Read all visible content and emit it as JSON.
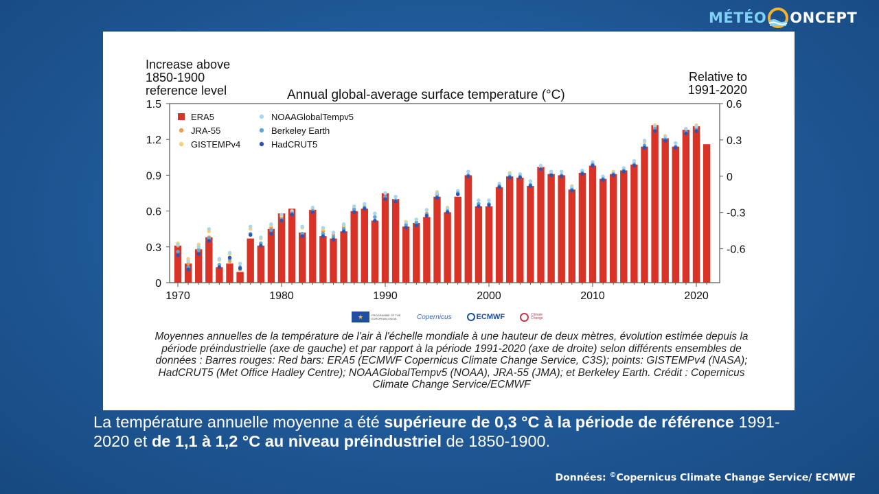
{
  "brand": {
    "part1": "MÉTÉO",
    "part2": "ONCEPT"
  },
  "chart_data": {
    "type": "bar",
    "title": "Annual global-average surface temperature (°C)",
    "ylabel": "Increase above 1850-1900 reference level",
    "ylabel_right": "Relative to 1991-2020",
    "ylim": [
      0,
      1.5
    ],
    "ylim_right": [
      -0.88,
      0.6
    ],
    "yticks": [
      "0",
      "0.3",
      "0.6",
      "0.9",
      "1.2",
      "1.5"
    ],
    "yticks_right": [
      "-0.6",
      "-0.3",
      "0",
      "0.3",
      "0.6"
    ],
    "xticks": [
      "1970",
      "1980",
      "1990",
      "2000",
      "2010",
      "2020"
    ],
    "legend_position": "top-left",
    "x": [
      1970,
      1971,
      1972,
      1973,
      1974,
      1975,
      1976,
      1977,
      1978,
      1979,
      1980,
      1981,
      1982,
      1983,
      1984,
      1985,
      1986,
      1987,
      1988,
      1989,
      1990,
      1991,
      1992,
      1993,
      1994,
      1995,
      1996,
      1997,
      1998,
      1999,
      2000,
      2001,
      2002,
      2003,
      2004,
      2005,
      2006,
      2007,
      2008,
      2009,
      2010,
      2011,
      2012,
      2013,
      2014,
      2015,
      2016,
      2017,
      2018,
      2019,
      2020,
      2021
    ],
    "series": [
      {
        "name": "ERA5",
        "kind": "bar",
        "color": "#d93226",
        "values": [
          0.31,
          0.16,
          0.28,
          0.38,
          0.13,
          0.16,
          0.09,
          0.37,
          0.31,
          0.45,
          0.58,
          0.62,
          0.42,
          0.61,
          0.39,
          0.37,
          0.43,
          0.6,
          0.62,
          0.52,
          0.75,
          0.7,
          0.47,
          0.5,
          0.55,
          0.72,
          0.59,
          0.72,
          0.9,
          0.64,
          0.64,
          0.8,
          0.89,
          0.88,
          0.81,
          0.97,
          0.91,
          0.9,
          0.78,
          0.92,
          0.98,
          0.87,
          0.91,
          0.94,
          0.99,
          1.14,
          1.32,
          1.21,
          1.14,
          1.28,
          1.31,
          1.16
        ]
      },
      {
        "name": "JRA-55",
        "kind": "point",
        "color": "#f2994a",
        "values": [
          0.31,
          0.16,
          0.28,
          0.38,
          0.15,
          0.18,
          0.11,
          0.4,
          0.33,
          0.46,
          0.55,
          0.59,
          0.41,
          0.61,
          0.43,
          0.4,
          0.47,
          0.62,
          0.65,
          0.55,
          0.72,
          0.69,
          0.49,
          0.51,
          0.58,
          0.74,
          0.6,
          0.75,
          0.9,
          0.66,
          0.66,
          0.8,
          0.89,
          0.88,
          0.82,
          0.96,
          0.91,
          0.9,
          0.79,
          0.91,
          0.99,
          0.87,
          0.91,
          0.94,
          0.99,
          1.14,
          1.3,
          1.2,
          1.14,
          1.26,
          1.3,
          null
        ]
      },
      {
        "name": "GISTEMPv4",
        "kind": "point",
        "color": "#f7d07a",
        "values": [
          0.33,
          0.2,
          0.32,
          0.43,
          0.19,
          0.24,
          0.16,
          0.45,
          0.37,
          0.48,
          0.56,
          0.6,
          0.46,
          0.62,
          0.45,
          0.42,
          0.48,
          0.64,
          0.65,
          0.58,
          0.75,
          0.72,
          0.51,
          0.53,
          0.61,
          0.76,
          0.63,
          0.77,
          0.93,
          0.69,
          0.69,
          0.83,
          0.92,
          0.91,
          0.85,
          0.97,
          0.93,
          0.93,
          0.81,
          0.94,
          1.01,
          0.89,
          0.93,
          0.96,
          1.01,
          1.18,
          1.32,
          1.23,
          1.17,
          1.29,
          1.32,
          null
        ]
      },
      {
        "name": "NOAAGlobalTempv5",
        "kind": "point",
        "color": "#a8d8ee",
        "values": [
          0.32,
          0.18,
          0.3,
          0.45,
          0.2,
          0.25,
          0.16,
          0.47,
          0.38,
          0.49,
          0.57,
          0.6,
          0.47,
          0.63,
          0.46,
          0.42,
          0.49,
          0.64,
          0.66,
          0.58,
          0.75,
          0.72,
          0.5,
          0.53,
          0.61,
          0.75,
          0.62,
          0.77,
          0.93,
          0.69,
          0.69,
          0.83,
          0.91,
          0.91,
          0.85,
          0.98,
          0.93,
          0.93,
          0.8,
          0.94,
          1.01,
          0.89,
          0.92,
          0.96,
          1.02,
          1.19,
          1.31,
          1.22,
          1.17,
          1.29,
          1.31,
          null
        ]
      },
      {
        "name": "Berkeley Earth",
        "kind": "point",
        "color": "#5aa6d8",
        "values": [
          0.26,
          0.13,
          0.27,
          0.37,
          0.15,
          0.2,
          0.13,
          0.41,
          0.33,
          0.44,
          0.53,
          0.58,
          0.41,
          0.6,
          0.41,
          0.38,
          0.45,
          0.61,
          0.63,
          0.55,
          0.72,
          0.69,
          0.48,
          0.5,
          0.57,
          0.72,
          0.6,
          0.75,
          0.9,
          0.66,
          0.66,
          0.81,
          0.89,
          0.89,
          0.82,
          0.95,
          0.9,
          0.9,
          0.78,
          0.92,
          0.99,
          0.87,
          0.91,
          0.94,
          0.99,
          1.15,
          1.29,
          1.2,
          1.14,
          1.26,
          1.28,
          null
        ]
      },
      {
        "name": "HadCRUT5",
        "kind": "point",
        "color": "#2c56b0",
        "values": [
          0.23,
          0.11,
          0.24,
          0.35,
          0.13,
          0.21,
          0.12,
          0.4,
          0.31,
          0.41,
          0.52,
          0.57,
          0.39,
          0.59,
          0.39,
          0.36,
          0.43,
          0.59,
          0.62,
          0.52,
          0.7,
          0.68,
          0.46,
          0.48,
          0.56,
          0.71,
          0.59,
          0.74,
          0.89,
          0.64,
          0.65,
          0.8,
          0.88,
          0.88,
          0.81,
          0.95,
          0.9,
          0.89,
          0.77,
          0.91,
          0.98,
          0.86,
          0.9,
          0.93,
          0.98,
          1.13,
          1.27,
          1.19,
          1.13,
          1.25,
          1.27,
          null
        ]
      }
    ]
  },
  "logos": {
    "eu": "PROGRAMME OF THE EUROPEAN UNION",
    "copernicus": "Copernicus",
    "ecmwf": "ECMWF",
    "c3s": "Climate Change"
  },
  "caption": "Moyennes annuelles de la température de l'air à l'échelle mondiale à une hauteur de deux mètres, évolution estimée depuis la période préindustrielle (axe de gauche) et par rapport à la période 1991-2020 (axe de droite) selon différents ensembles de données : Barres rouges: Red bars: ERA5 (ECMWF Copernicus Climate Change Service, C3S); points: GISTEMPv4 (NASA); HadCRUT5 (Met Office Hadley Centre); NOAAGlobalTempv5 (NOAA), JRA-55 (JMA); et Berkeley Earth. Crédit : Copernicus Climate Change Service/ECMWF",
  "summary": {
    "t1": "La température annuelle moyenne a été ",
    "b1": "supérieure de 0,3 °C à la période de référence",
    "t2": " 1991-2020 et ",
    "b2": "de 1,1 à 1,2 °C au niveau préindustriel",
    "t3": " de 1850-1900."
  },
  "credit": {
    "prefix": "Données: ",
    "symbol": "©",
    "text": "Copernicus Climate Change Service/ ECMWF"
  }
}
